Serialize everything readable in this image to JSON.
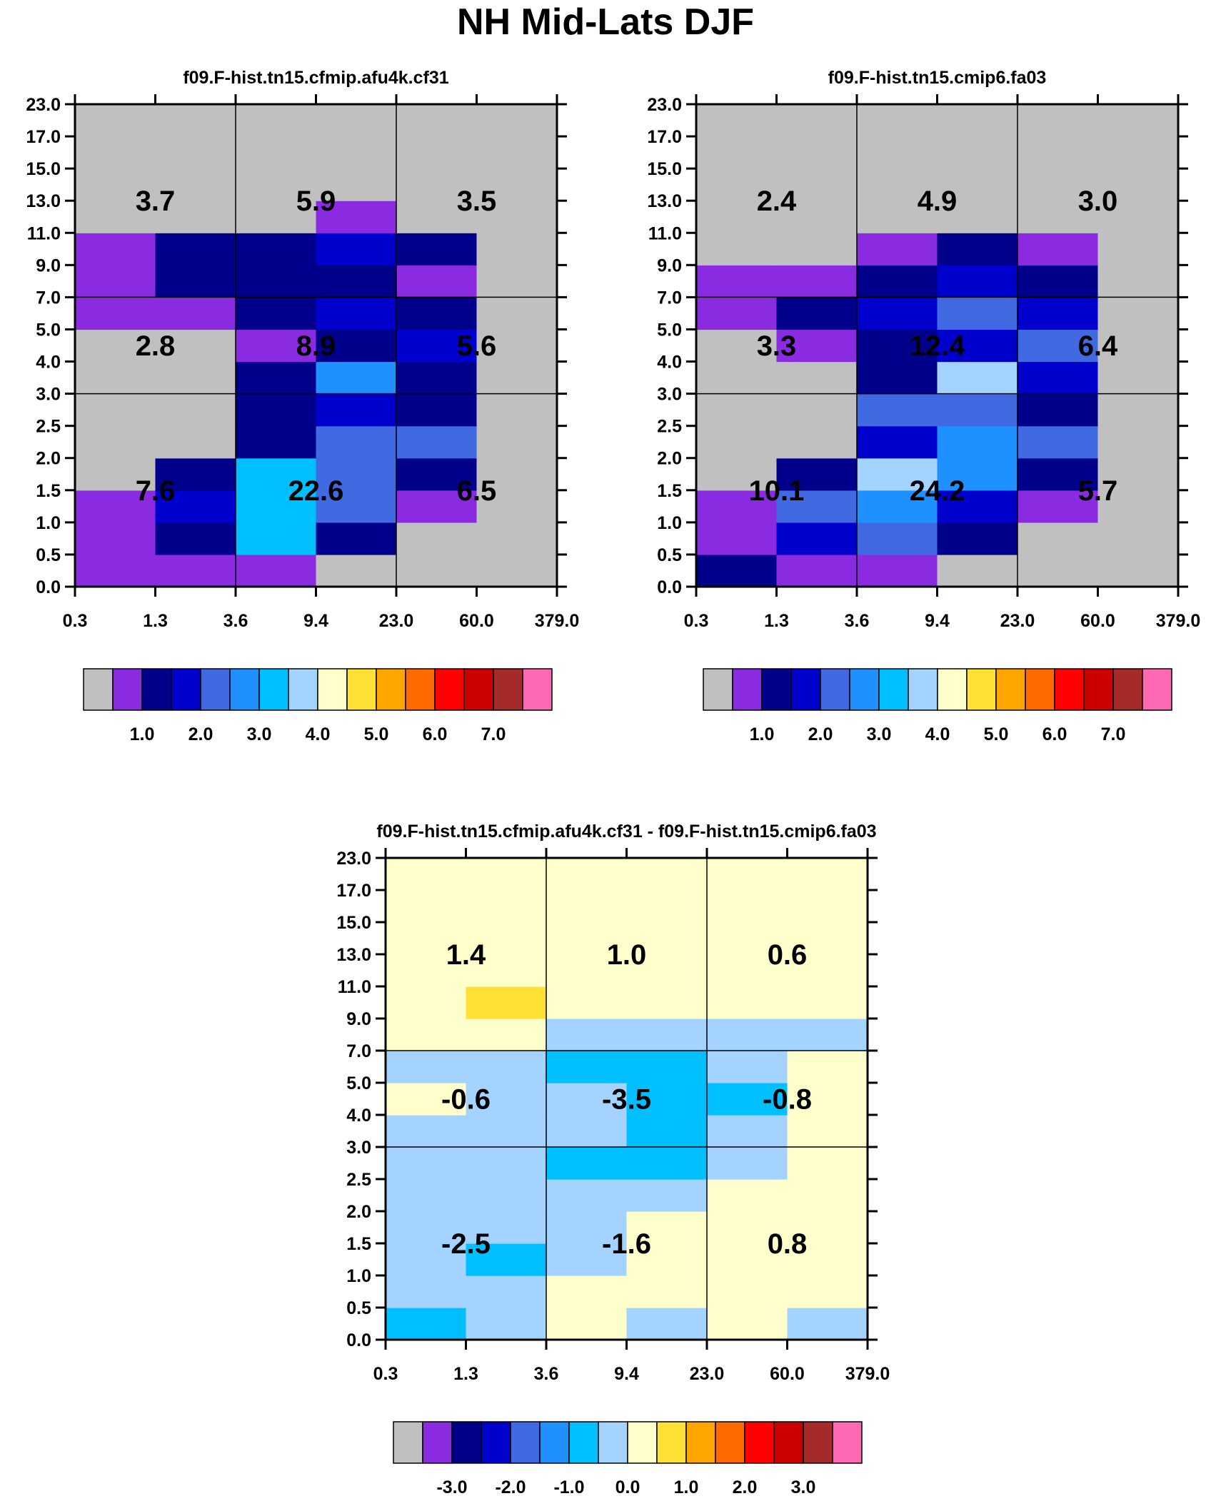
{
  "title": "NH Mid-Lats DJF",
  "x_ticks": [
    "0.3",
    "1.3",
    "3.6",
    "9.4",
    "23.0",
    "60.0",
    "379.0"
  ],
  "y_ticks": [
    "0.0",
    "0.5",
    "1.0",
    "1.5",
    "2.0",
    "2.5",
    "3.0",
    "4.0",
    "5.0",
    "7.0",
    "9.0",
    "11.0",
    "13.0",
    "15.0",
    "17.0",
    "23.0"
  ],
  "colors": [
    "#c0c0c0",
    "#8a2be2",
    "#00008b",
    "#0000cd",
    "#4169e1",
    "#1e90ff",
    "#00bfff",
    "#a4d3ff",
    "#ffffcc",
    "#ffe135",
    "#ffa500",
    "#ff6a00",
    "#ff0000",
    "#cd0000",
    "#a52a2a",
    "#ff69b4"
  ],
  "colorbar_abs_labels": [
    "1.0",
    "2.0",
    "3.0",
    "4.0",
    "5.0",
    "6.0",
    "7.0"
  ],
  "colorbar_diff_labels": [
    "-3.0",
    "-2.0",
    "-1.0",
    "0.0",
    "1.0",
    "2.0",
    "3.0"
  ],
  "chart_data": [
    {
      "type": "heatmap",
      "title": "f09.F-hist.tn15.cfmip.afu4k.cf31",
      "xlabel": "",
      "ylabel": "",
      "color_levels": [
        0.5,
        1.0,
        1.5,
        2.0,
        2.5,
        3.0,
        3.5,
        4.0,
        4.5,
        5.0,
        5.5,
        6.0,
        6.5,
        7.0,
        7.5
      ],
      "cell_values_note": "rows listed from bottom (0.0-0.5) to top (17.0-23.0); columns by x-bin",
      "cell_color_index": [
        [
          1,
          1,
          1,
          0,
          0,
          0
        ],
        [
          1,
          2,
          6,
          2,
          0,
          0
        ],
        [
          1,
          3,
          6,
          4,
          1,
          0
        ],
        [
          0,
          2,
          6,
          4,
          2,
          0
        ],
        [
          0,
          0,
          2,
          4,
          4,
          0
        ],
        [
          0,
          0,
          2,
          3,
          2,
          0
        ],
        [
          0,
          0,
          2,
          5,
          2,
          0
        ],
        [
          0,
          0,
          1,
          2,
          3,
          0
        ],
        [
          1,
          1,
          2,
          3,
          2,
          0
        ],
        [
          1,
          2,
          2,
          2,
          1,
          0
        ],
        [
          1,
          2,
          2,
          3,
          2,
          0
        ],
        [
          0,
          0,
          0,
          1,
          0,
          0
        ],
        [
          0,
          0,
          0,
          0,
          0,
          0
        ],
        [
          0,
          0,
          0,
          0,
          0,
          0
        ],
        [
          0,
          0,
          0,
          0,
          0,
          0
        ]
      ],
      "region_labels": [
        [
          "7.6",
          "22.6",
          "6.5"
        ],
        [
          "2.8",
          "8.9",
          "5.6"
        ],
        [
          "3.7",
          "5.9",
          "3.5"
        ]
      ]
    },
    {
      "type": "heatmap",
      "title": "f09.F-hist.tn15.cmip6.fa03",
      "xlabel": "",
      "ylabel": "",
      "color_levels": [
        0.5,
        1.0,
        1.5,
        2.0,
        2.5,
        3.0,
        3.5,
        4.0,
        4.5,
        5.0,
        5.5,
        6.0,
        6.5,
        7.0,
        7.5
      ],
      "cell_color_index": [
        [
          2,
          1,
          1,
          0,
          0,
          0
        ],
        [
          1,
          3,
          4,
          2,
          0,
          0
        ],
        [
          1,
          4,
          5,
          3,
          1,
          0
        ],
        [
          0,
          2,
          7,
          5,
          2,
          0
        ],
        [
          0,
          0,
          3,
          5,
          4,
          0
        ],
        [
          0,
          0,
          4,
          4,
          2,
          0
        ],
        [
          0,
          0,
          2,
          7,
          3,
          0
        ],
        [
          0,
          1,
          2,
          3,
          4,
          0
        ],
        [
          1,
          2,
          3,
          4,
          3,
          0
        ],
        [
          1,
          1,
          2,
          3,
          2,
          0
        ],
        [
          0,
          0,
          1,
          2,
          1,
          0
        ],
        [
          0,
          0,
          0,
          0,
          0,
          0
        ],
        [
          0,
          0,
          0,
          0,
          0,
          0
        ],
        [
          0,
          0,
          0,
          0,
          0,
          0
        ],
        [
          0,
          0,
          0,
          0,
          0,
          0
        ]
      ],
      "region_labels": [
        [
          "10.1",
          "24.2",
          "5.7"
        ],
        [
          "3.3",
          "12.4",
          "6.4"
        ],
        [
          "2.4",
          "4.9",
          "3.0"
        ]
      ]
    },
    {
      "type": "heatmap",
      "title": "f09.F-hist.tn15.cfmip.afu4k.cf31 - f09.F-hist.tn15.cmip6.fa03",
      "xlabel": "",
      "ylabel": "",
      "color_levels": [
        -3.5,
        -3.0,
        -2.5,
        -2.0,
        -1.5,
        -1.0,
        -0.5,
        0.0,
        0.5,
        1.0,
        1.5,
        2.0,
        2.5,
        3.0,
        3.5
      ],
      "cell_color_index": [
        [
          6,
          7,
          8,
          7,
          8,
          7
        ],
        [
          7,
          7,
          8,
          8,
          8,
          8
        ],
        [
          7,
          6,
          7,
          8,
          8,
          8
        ],
        [
          7,
          7,
          7,
          8,
          8,
          8
        ],
        [
          7,
          7,
          7,
          7,
          8,
          8
        ],
        [
          7,
          7,
          6,
          6,
          7,
          8
        ],
        [
          7,
          7,
          7,
          6,
          7,
          8
        ],
        [
          8,
          7,
          7,
          6,
          6,
          8
        ],
        [
          7,
          7,
          6,
          6,
          7,
          8
        ],
        [
          8,
          8,
          7,
          7,
          7,
          7
        ],
        [
          8,
          9,
          8,
          8,
          8,
          8
        ],
        [
          8,
          8,
          8,
          8,
          8,
          8
        ],
        [
          8,
          8,
          8,
          8,
          8,
          8
        ],
        [
          8,
          8,
          8,
          8,
          8,
          8
        ],
        [
          8,
          8,
          8,
          8,
          8,
          8
        ]
      ],
      "region_labels": [
        [
          "-2.5",
          "-1.6",
          "0.8"
        ],
        [
          "-0.6",
          "-3.5",
          "-0.8"
        ],
        [
          "1.4",
          "1.0",
          "0.6"
        ]
      ]
    }
  ]
}
